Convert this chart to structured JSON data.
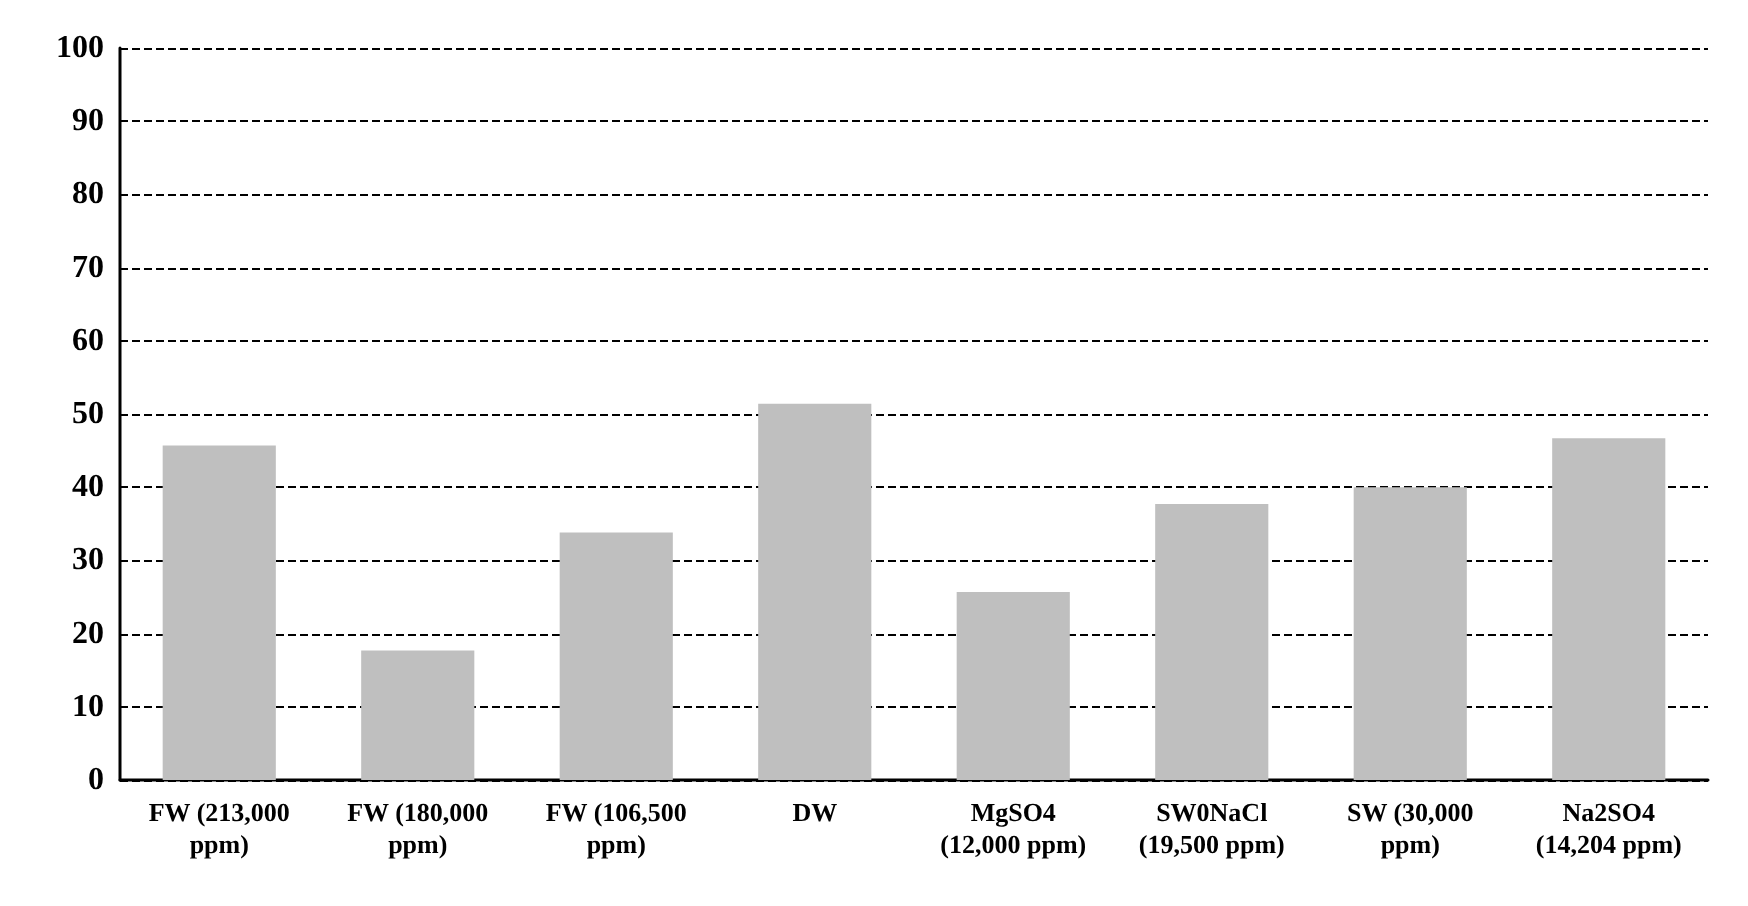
{
  "chart_data": {
    "type": "bar",
    "categories": [
      "FW (213,000\nppm)",
      "FW (180,000\nppm)",
      "FW (106,500\nppm)",
      "DW",
      "MgSO4\n(12,000 ppm)",
      "SW0NaCl\n(19,500 ppm)",
      "SW (30,000\nppm)",
      "Na2SO4\n(14,204 ppm)"
    ],
    "values": [
      45.7,
      17.7,
      33.8,
      51.4,
      25.7,
      37.7,
      40,
      46.7
    ],
    "color": "#bfbfbf",
    "ylim": [
      0,
      100
    ],
    "yticks": [
      0,
      10,
      20,
      30,
      40,
      50,
      60,
      70,
      80,
      90,
      100
    ],
    "grid": "y"
  }
}
